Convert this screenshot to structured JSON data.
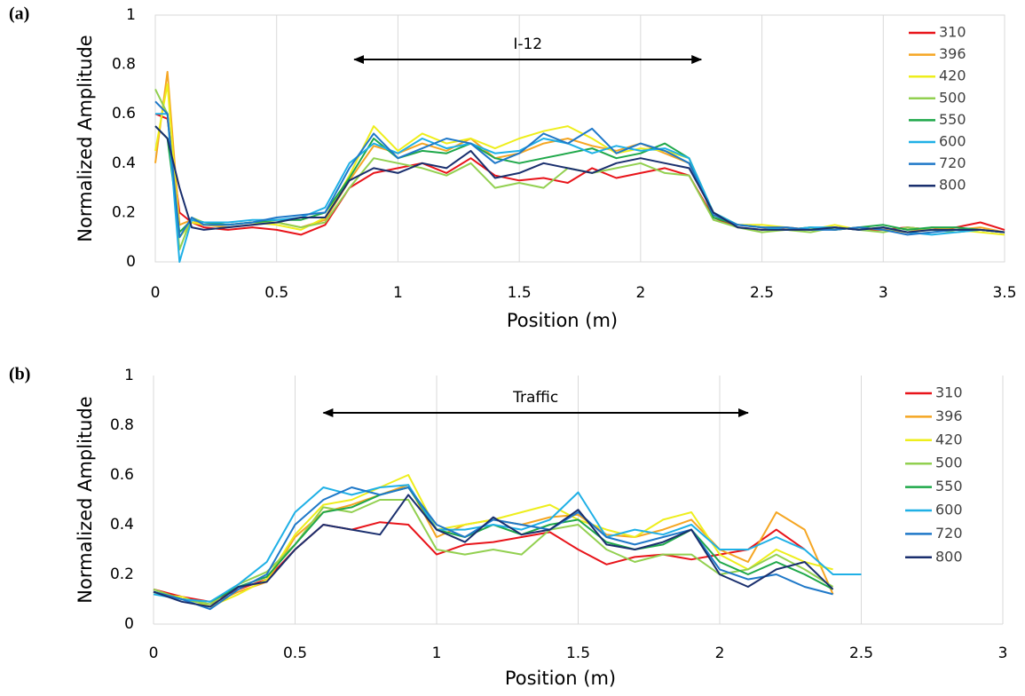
{
  "chart_data": [
    {
      "type": "line",
      "panel_label": "(a)",
      "x_label": "Position (m)",
      "y_label": "Normalized Amplitude",
      "annotation": {
        "text": "I-12",
        "x": [
          0.82,
          2.25
        ],
        "y": 0.82
      },
      "xlim": [
        0,
        3.5
      ],
      "xticks": [
        0,
        0.5,
        1,
        1.5,
        2,
        2.5,
        3,
        3.5
      ],
      "ylim": [
        0,
        1
      ],
      "yticks": [
        0,
        0.2,
        0.4,
        0.6,
        0.8,
        1
      ],
      "grid": "x",
      "frame": true,
      "legend": "top-right",
      "x": [
        0,
        0.05,
        0.1,
        0.15,
        0.2,
        0.3,
        0.4,
        0.5,
        0.6,
        0.7,
        0.8,
        0.9,
        1,
        1.1,
        1.2,
        1.3,
        1.4,
        1.5,
        1.6,
        1.7,
        1.8,
        1.9,
        2,
        2.1,
        2.2,
        2.3,
        2.4,
        2.5,
        2.6,
        2.7,
        2.8,
        2.9,
        3,
        3.1,
        3.2,
        3.3,
        3.4,
        3.5
      ],
      "series": [
        {
          "name": "310",
          "color": "#e8141a",
          "values": [
            0.6,
            0.58,
            0.2,
            0.16,
            0.14,
            0.13,
            0.14,
            0.13,
            0.11,
            0.15,
            0.3,
            0.36,
            0.38,
            0.4,
            0.36,
            0.42,
            0.35,
            0.33,
            0.34,
            0.32,
            0.38,
            0.34,
            0.36,
            0.38,
            0.35,
            0.18,
            0.14,
            0.13,
            0.14,
            0.13,
            0.14,
            0.13,
            0.13,
            0.14,
            0.13,
            0.14,
            0.16,
            0.13
          ]
        },
        {
          "name": "396",
          "color": "#f5a623",
          "values": [
            0.4,
            0.77,
            0.15,
            0.17,
            0.15,
            0.14,
            0.15,
            0.16,
            0.14,
            0.17,
            0.33,
            0.47,
            0.44,
            0.48,
            0.45,
            0.5,
            0.42,
            0.44,
            0.48,
            0.5,
            0.47,
            0.45,
            0.48,
            0.44,
            0.4,
            0.19,
            0.15,
            0.14,
            0.13,
            0.14,
            0.13,
            0.14,
            0.13,
            0.12,
            0.14,
            0.13,
            0.14,
            0.12
          ]
        },
        {
          "name": "420",
          "color": "#eeee1c",
          "values": [
            0.45,
            0.72,
            0.1,
            0.16,
            0.15,
            0.15,
            0.16,
            0.15,
            0.13,
            0.18,
            0.35,
            0.55,
            0.45,
            0.52,
            0.48,
            0.5,
            0.46,
            0.5,
            0.53,
            0.55,
            0.5,
            0.44,
            0.46,
            0.45,
            0.42,
            0.2,
            0.15,
            0.15,
            0.14,
            0.13,
            0.15,
            0.13,
            0.14,
            0.12,
            0.13,
            0.13,
            0.12,
            0.11
          ]
        },
        {
          "name": "500",
          "color": "#92d050",
          "values": [
            0.7,
            0.6,
            0.05,
            0.18,
            0.16,
            0.15,
            0.16,
            0.16,
            0.14,
            0.16,
            0.3,
            0.42,
            0.4,
            0.38,
            0.35,
            0.4,
            0.3,
            0.32,
            0.3,
            0.38,
            0.36,
            0.38,
            0.4,
            0.36,
            0.35,
            0.17,
            0.14,
            0.12,
            0.13,
            0.12,
            0.14,
            0.13,
            0.12,
            0.14,
            0.13,
            0.12,
            0.13,
            0.12
          ]
        },
        {
          "name": "550",
          "color": "#1fa84a",
          "values": [
            0.55,
            0.5,
            0.12,
            0.17,
            0.16,
            0.15,
            0.16,
            0.17,
            0.17,
            0.2,
            0.34,
            0.5,
            0.42,
            0.45,
            0.44,
            0.48,
            0.42,
            0.4,
            0.42,
            0.44,
            0.46,
            0.42,
            0.44,
            0.48,
            0.42,
            0.18,
            0.15,
            0.14,
            0.13,
            0.14,
            0.13,
            0.14,
            0.15,
            0.13,
            0.14,
            0.14,
            0.13,
            0.12
          ]
        },
        {
          "name": "600",
          "color": "#1fb0e6",
          "values": [
            0.6,
            0.6,
            0.0,
            0.17,
            0.16,
            0.16,
            0.17,
            0.17,
            0.18,
            0.22,
            0.4,
            0.48,
            0.44,
            0.5,
            0.46,
            0.48,
            0.44,
            0.45,
            0.5,
            0.48,
            0.44,
            0.47,
            0.45,
            0.46,
            0.42,
            0.2,
            0.15,
            0.14,
            0.13,
            0.14,
            0.14,
            0.13,
            0.14,
            0.12,
            0.11,
            0.12,
            0.13,
            0.12
          ]
        },
        {
          "name": "720",
          "color": "#1f78c8",
          "values": [
            0.65,
            0.6,
            0.1,
            0.18,
            0.15,
            0.15,
            0.16,
            0.18,
            0.19,
            0.2,
            0.38,
            0.52,
            0.42,
            0.46,
            0.5,
            0.48,
            0.4,
            0.44,
            0.52,
            0.48,
            0.54,
            0.44,
            0.48,
            0.45,
            0.4,
            0.19,
            0.15,
            0.14,
            0.14,
            0.13,
            0.13,
            0.14,
            0.13,
            0.11,
            0.12,
            0.13,
            0.13,
            0.12
          ]
        },
        {
          "name": "800",
          "color": "#1a2f6e",
          "values": [
            0.55,
            0.5,
            0.3,
            0.14,
            0.13,
            0.14,
            0.15,
            0.16,
            0.18,
            0.18,
            0.33,
            0.38,
            0.36,
            0.4,
            0.38,
            0.45,
            0.34,
            0.36,
            0.4,
            0.38,
            0.36,
            0.4,
            0.42,
            0.4,
            0.38,
            0.2,
            0.14,
            0.13,
            0.13,
            0.13,
            0.14,
            0.13,
            0.14,
            0.12,
            0.13,
            0.13,
            0.13,
            0.12
          ]
        }
      ]
    },
    {
      "type": "line",
      "panel_label": "(b)",
      "x_label": "Position (m)",
      "y_label": "Normalized Amplitude",
      "annotation": {
        "text": "Traffic",
        "x": [
          0.6,
          2.1
        ],
        "y": 0.85
      },
      "xlim": [
        0,
        3
      ],
      "xticks": [
        0,
        0.5,
        1,
        1.5,
        2,
        2.5,
        3
      ],
      "ylim": [
        0,
        1
      ],
      "yticks": [
        0,
        0.2,
        0.4,
        0.6,
        0.8,
        1
      ],
      "grid": "x",
      "frame": false,
      "legend": "top-right",
      "x": [
        0,
        0.1,
        0.2,
        0.3,
        0.4,
        0.5,
        0.6,
        0.7,
        0.8,
        0.9,
        1,
        1.1,
        1.2,
        1.3,
        1.4,
        1.5,
        1.6,
        1.7,
        1.8,
        1.9,
        2,
        2.1,
        2.2,
        2.3,
        2.4,
        2.5
      ],
      "series": [
        {
          "name": "310",
          "color": "#e8141a",
          "values": [
            0.14,
            0.11,
            0.09,
            0.14,
            0.18,
            0.3,
            0.4,
            0.38,
            0.41,
            0.4,
            0.28,
            0.32,
            0.33,
            0.35,
            0.37,
            0.3,
            0.24,
            0.27,
            0.28,
            0.26,
            0.28,
            0.3,
            0.38,
            0.3,
            null,
            null
          ]
        },
        {
          "name": "396",
          "color": "#f5a623",
          "values": [
            0.13,
            0.1,
            0.08,
            0.13,
            0.17,
            0.35,
            0.45,
            0.48,
            0.52,
            0.56,
            0.35,
            0.4,
            0.42,
            0.4,
            0.43,
            0.44,
            0.36,
            0.35,
            0.38,
            0.42,
            0.3,
            0.25,
            0.45,
            0.38,
            0.12,
            null
          ]
        },
        {
          "name": "420",
          "color": "#eeee1c",
          "values": [
            0.12,
            0.11,
            0.07,
            0.12,
            0.18,
            0.36,
            0.48,
            0.5,
            0.55,
            0.6,
            0.38,
            0.4,
            0.42,
            0.45,
            0.48,
            0.42,
            0.38,
            0.35,
            0.42,
            0.45,
            0.28,
            0.22,
            0.3,
            0.25,
            0.22,
            null
          ]
        },
        {
          "name": "500",
          "color": "#92d050",
          "values": [
            0.14,
            0.1,
            0.08,
            0.16,
            0.21,
            0.32,
            0.47,
            0.45,
            0.5,
            0.5,
            0.3,
            0.28,
            0.3,
            0.28,
            0.38,
            0.4,
            0.3,
            0.25,
            0.28,
            0.28,
            0.2,
            0.22,
            0.28,
            0.22,
            0.15,
            null
          ]
        },
        {
          "name": "550",
          "color": "#1fa84a",
          "values": [
            0.13,
            0.1,
            0.09,
            0.15,
            0.19,
            0.32,
            0.45,
            0.47,
            0.52,
            0.55,
            0.38,
            0.35,
            0.4,
            0.36,
            0.4,
            0.42,
            0.33,
            0.3,
            0.32,
            0.38,
            0.25,
            0.2,
            0.25,
            0.2,
            0.14,
            null
          ]
        },
        {
          "name": "600",
          "color": "#1fb0e6",
          "values": [
            0.12,
            0.1,
            0.09,
            0.16,
            0.25,
            0.45,
            0.55,
            0.52,
            0.55,
            0.56,
            0.38,
            0.38,
            0.4,
            0.38,
            0.42,
            0.53,
            0.35,
            0.38,
            0.36,
            0.4,
            0.3,
            0.3,
            0.35,
            0.3,
            0.2,
            0.2
          ]
        },
        {
          "name": "720",
          "color": "#1f78c8",
          "values": [
            0.13,
            0.1,
            0.06,
            0.14,
            0.2,
            0.4,
            0.5,
            0.55,
            0.52,
            0.55,
            0.4,
            0.35,
            0.42,
            0.4,
            0.38,
            0.45,
            0.35,
            0.32,
            0.35,
            0.38,
            0.22,
            0.18,
            0.2,
            0.15,
            0.12,
            null
          ]
        },
        {
          "name": "800",
          "color": "#1a2f6e",
          "values": [
            0.13,
            0.09,
            0.07,
            0.15,
            0.17,
            0.3,
            0.4,
            0.38,
            0.36,
            0.52,
            0.38,
            0.33,
            0.43,
            0.36,
            0.38,
            0.46,
            0.32,
            0.3,
            0.33,
            0.38,
            0.2,
            0.15,
            0.22,
            0.25,
            0.14,
            null
          ]
        }
      ]
    }
  ]
}
